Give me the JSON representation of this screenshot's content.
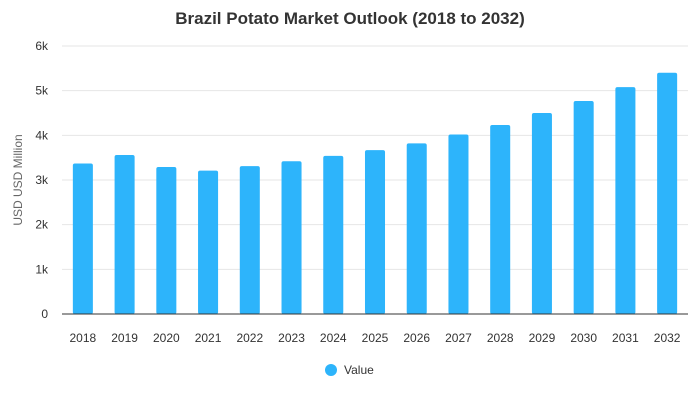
{
  "chart_data": {
    "type": "bar",
    "title": "Brazil Potato Market Outlook (2018 to 2032)",
    "xlabel": "",
    "ylabel": "USD USD Million",
    "categories": [
      "2018",
      "2019",
      "2020",
      "2021",
      "2022",
      "2023",
      "2024",
      "2025",
      "2026",
      "2027",
      "2028",
      "2029",
      "2030",
      "2031",
      "2032"
    ],
    "series": [
      {
        "name": "Value",
        "color": "#2db4fb",
        "values": [
          3370,
          3560,
          3290,
          3210,
          3310,
          3420,
          3540,
          3670,
          3820,
          4020,
          4230,
          4500,
          4770,
          5080,
          5400
        ]
      }
    ],
    "ylim": [
      0,
      6000
    ],
    "yticks": [
      {
        "value": 0,
        "label": "0"
      },
      {
        "value": 1000,
        "label": "1k"
      },
      {
        "value": 2000,
        "label": "2k"
      },
      {
        "value": 3000,
        "label": "3k"
      },
      {
        "value": 4000,
        "label": "4k"
      },
      {
        "value": 5000,
        "label": "5k"
      },
      {
        "value": 6000,
        "label": "6k"
      }
    ],
    "grid": true,
    "legend": {
      "position": "bottom-center",
      "entries": [
        "Value"
      ]
    }
  }
}
